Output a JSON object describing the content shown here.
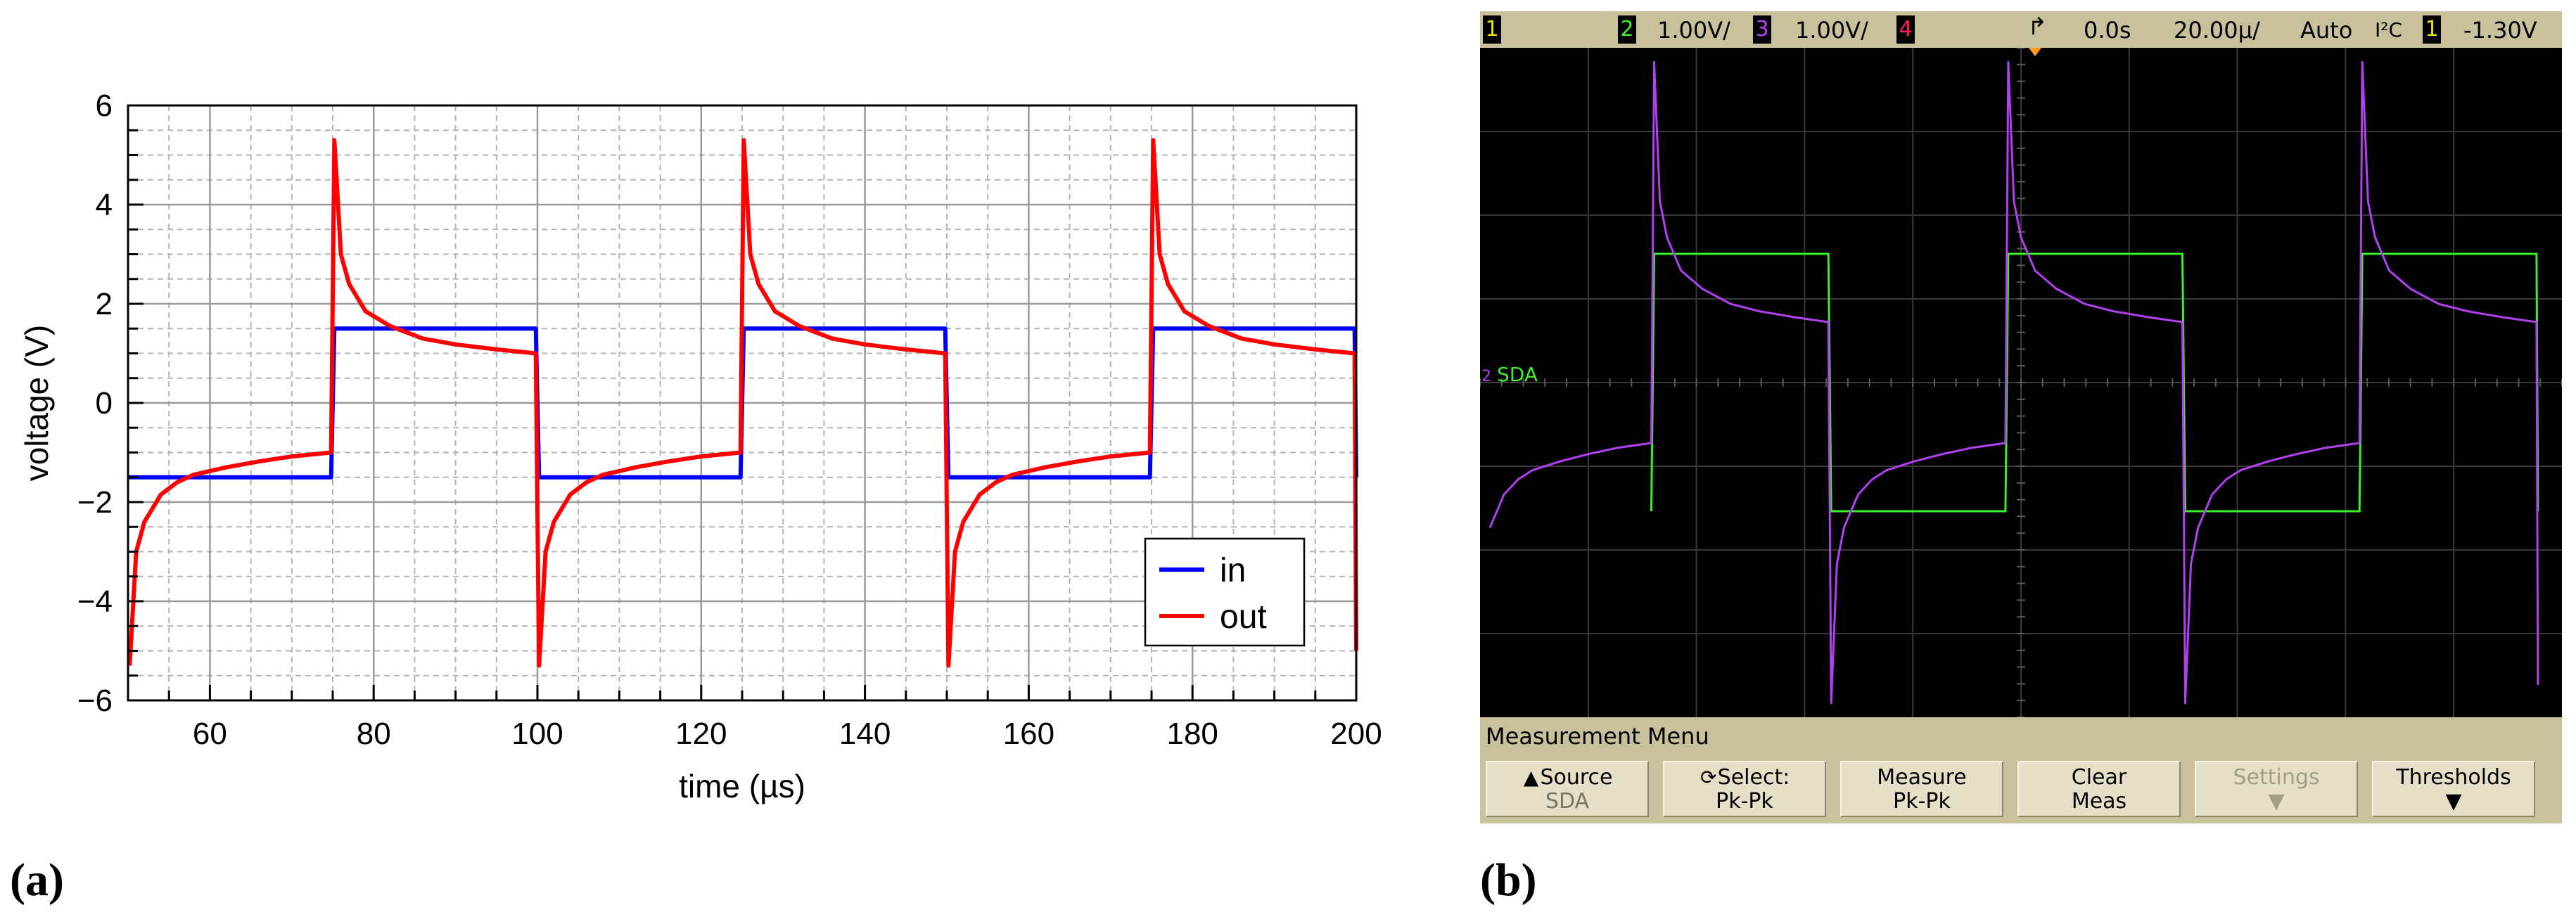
{
  "panel_a_label": "(a)",
  "panel_b_label": "(b)",
  "chart_data": [
    {
      "type": "line",
      "panel": "a",
      "title": "",
      "xlabel": "time (µs)",
      "ylabel": "voltage (V)",
      "xlim": [
        50,
        200
      ],
      "ylim": [
        -6,
        6
      ],
      "xticks": [
        60,
        80,
        100,
        120,
        140,
        160,
        180,
        200
      ],
      "yticks": [
        -6,
        -4,
        -2,
        0,
        2,
        4,
        6
      ],
      "xtick_labels": [
        "60",
        "80",
        "100",
        "120",
        "140",
        "160",
        "180",
        "200"
      ],
      "ytick_labels": [
        "−6",
        "−4",
        "−2",
        "0",
        "2",
        "4",
        "6"
      ],
      "grid": true,
      "legend_position": "bottom-right",
      "series": [
        {
          "name": "in",
          "color": "#0000ff",
          "x": [
            50,
            74.8,
            75.2,
            99.8,
            100.2,
            124.8,
            125.2,
            149.8,
            150.2,
            174.8,
            175.2,
            199.8,
            200
          ],
          "y": [
            -1.5,
            -1.5,
            1.5,
            1.5,
            -1.5,
            -1.5,
            1.5,
            1.5,
            -1.5,
            -1.5,
            1.5,
            1.5,
            -1.5
          ]
        },
        {
          "name": "out",
          "color": "#ff0000",
          "x": [
            50.2,
            51,
            52,
            54,
            56,
            58,
            62,
            66,
            70,
            74.8,
            75.2,
            76,
            77,
            79,
            82,
            86,
            90,
            95,
            99.8,
            100.2,
            101,
            102,
            104,
            106,
            108,
            112,
            116,
            120,
            124.8,
            125.2,
            126,
            127,
            129,
            132,
            136,
            140,
            145,
            149.8,
            150.2,
            151,
            152,
            154,
            156,
            158,
            162,
            166,
            170,
            174.8,
            175.2,
            176,
            177,
            179,
            182,
            186,
            190,
            195,
            199.8,
            200
          ],
          "y": [
            -5.3,
            -3.0,
            -2.4,
            -1.85,
            -1.6,
            -1.45,
            -1.3,
            -1.18,
            -1.08,
            -1.0,
            5.3,
            3.0,
            2.4,
            1.85,
            1.55,
            1.3,
            1.18,
            1.08,
            1.0,
            -5.3,
            -3.0,
            -2.4,
            -1.85,
            -1.6,
            -1.45,
            -1.3,
            -1.18,
            -1.08,
            -1.0,
            5.3,
            3.0,
            2.4,
            1.85,
            1.55,
            1.3,
            1.18,
            1.08,
            1.0,
            -5.3,
            -3.0,
            -2.4,
            -1.85,
            -1.6,
            -1.45,
            -1.3,
            -1.18,
            -1.08,
            -1.0,
            5.3,
            3.0,
            2.4,
            1.85,
            1.55,
            1.3,
            1.18,
            1.08,
            1.0,
            -5.0
          ]
        }
      ]
    }
  ],
  "scope": {
    "status": {
      "ch1_tag": "1",
      "ch2_tag": "2",
      "ch2_scale": "1.00V/",
      "ch3_tag": "3",
      "ch3_scale": "1.00V/",
      "ch4_tag": "4",
      "trigger_icon": "trigger-edge-icon",
      "delay": "0.0s",
      "timebase": "20.00µ/",
      "trigger_mode": "Auto",
      "trigger_type": "I²C",
      "trigger_ch": "1",
      "trigger_level": "-1.30V"
    },
    "channel_colors": {
      "ch1": "#e8e000",
      "ch2": "#3cf028",
      "ch3": "#b040f0",
      "ch4": "#ff2060"
    },
    "sda_marker": "2",
    "sda_label": "SDA",
    "measurement_menu": {
      "title": "Measurement Menu",
      "softkeys": [
        {
          "line1": "Source",
          "line2": "SDA",
          "icon": "up-arrow-icon"
        },
        {
          "line1": "Select:",
          "line2": "Pk-Pk",
          "icon": "rotate-knob-icon"
        },
        {
          "line1": "Measure",
          "line2": "Pk-Pk"
        },
        {
          "line1": "Clear",
          "line2": "Meas"
        },
        {
          "line1": "Settings",
          "line2": "",
          "disabled": true,
          "icon": "down-arrow-icon"
        },
        {
          "line1": "Thresholds",
          "line2": "",
          "icon": "down-arrow-icon"
        }
      ]
    }
  }
}
